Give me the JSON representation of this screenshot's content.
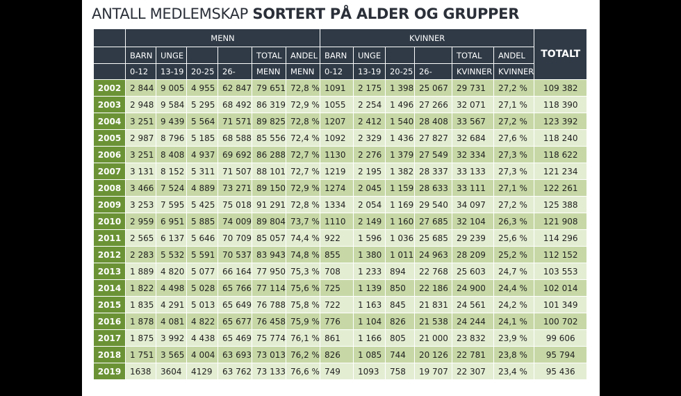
{
  "title": {
    "light": "ANTALL MEDLEMSKAP",
    "bold": "SORTERT PÅ ALDER OG GRUPPER"
  },
  "header": {
    "menn": "MENN",
    "kvinner": "KVINNER",
    "totalt": "TOTALT",
    "men_cols": [
      {
        "top": "BARN",
        "bottom": "0-12"
      },
      {
        "top": "UNGE",
        "bottom": "13-19"
      },
      {
        "top": "",
        "bottom": "20-25"
      },
      {
        "top": "",
        "bottom": "26-"
      },
      {
        "top": "TOTAL",
        "bottom": "MENN"
      },
      {
        "top": "ANDEL",
        "bottom": "MENN"
      }
    ],
    "women_cols": [
      {
        "top": "BARN",
        "bottom": "0-12"
      },
      {
        "top": "UNGE",
        "bottom": "13-19"
      },
      {
        "top": "",
        "bottom": "20-25"
      },
      {
        "top": "",
        "bottom": "26-"
      },
      {
        "top": "TOTAL",
        "bottom": "KVINNER"
      },
      {
        "top": "ANDEL",
        "bottom": "KVINNER"
      }
    ]
  },
  "rows": [
    [
      "2002",
      "2 844",
      "9 005",
      "4 955",
      "62 847",
      "79 651",
      "72,8 %",
      "1091",
      "2 175",
      "1 398",
      "25 067",
      "29 731",
      "27,2 %",
      "109 382"
    ],
    [
      "2003",
      "2 948",
      "9 584",
      "5 295",
      "68 492",
      "86 319",
      "72,9 %",
      "1055",
      "2 254",
      "1 496",
      "27 266",
      "32 071",
      "27,1 %",
      "118 390"
    ],
    [
      "2004",
      "3 251",
      "9 439",
      "5 564",
      "71 571",
      "89 825",
      "72,8 %",
      "1207",
      "2 412",
      "1 540",
      "28 408",
      "33 567",
      "27,2 %",
      "123 392"
    ],
    [
      "2005",
      "2 987",
      "8 796",
      "5 185",
      "68 588",
      "85 556",
      "72,4 %",
      "1092",
      "2 329",
      "1 436",
      "27 827",
      "32 684",
      "27,6 %",
      "118 240"
    ],
    [
      "2006",
      "3 251",
      "8 408",
      "4 937",
      "69 692",
      "86 288",
      "72,7 %",
      "1130",
      "2 276",
      "1 379",
      "27 549",
      "32 334",
      "27,3 %",
      "118 622"
    ],
    [
      "2007",
      "3 131",
      "8 152",
      "5 311",
      "71 507",
      "88 101",
      "72,7 %",
      "1219",
      "2 195",
      "1 382",
      "28 337",
      "33 133",
      "27,3 %",
      "121 234"
    ],
    [
      "2008",
      "3 466",
      "7 524",
      "4 889",
      "73 271",
      "89 150",
      "72,9 %",
      "1274",
      "2 045",
      "1 159",
      "28 633",
      "33 111",
      "27,1 %",
      "122 261"
    ],
    [
      "2009",
      "3 253",
      "7 595",
      "5 425",
      "75 018",
      "91 291",
      "72,8 %",
      "1334",
      "2 054",
      "1 169",
      "29 540",
      "34 097",
      "27,2 %",
      "125 388"
    ],
    [
      "2010",
      "2 959",
      "6 951",
      "5 885",
      "74 009",
      "89 804",
      "73,7 %",
      "1110",
      "2 149",
      "1 160",
      "27 685",
      "32 104",
      "26,3 %",
      "121 908"
    ],
    [
      "2011",
      "2 565",
      "6 137",
      "5 646",
      "70 709",
      "85 057",
      "74,4 %",
      "922",
      "1 596",
      "1 036",
      "25 685",
      "29 239",
      "25,6 %",
      "114 296"
    ],
    [
      "2012",
      "2 283",
      "5 532",
      "5 591",
      "70 537",
      "83 943",
      "74,8 %",
      "855",
      "1 380",
      "1 011",
      "24 963",
      "28 209",
      "25,2 %",
      "112 152"
    ],
    [
      "2013",
      "1 889",
      "4 820",
      "5 077",
      "66 164",
      "77 950",
      "75,3 %",
      "708",
      "1 233",
      "894",
      "22 768",
      "25 603",
      "24,7 %",
      "103 553"
    ],
    [
      "2014",
      "1 822",
      "4 498",
      "5 028",
      "65 766",
      "77 114",
      "75,6 %",
      "725",
      "1 139",
      "850",
      "22 186",
      "24 900",
      "24,4 %",
      "102 014"
    ],
    [
      "2015",
      "1 835",
      "4 291",
      "5 013",
      "65 649",
      "76 788",
      "75,8 %",
      "722",
      "1 163",
      "845",
      "21 831",
      "24 561",
      "24,2 %",
      "101 349"
    ],
    [
      "2016",
      "1 878",
      "4 081",
      "4 822",
      "65 677",
      "76 458",
      "75,9 %",
      "776",
      "1 104",
      "826",
      "21 538",
      "24 244",
      "24,1 %",
      "100 702"
    ],
    [
      "2017",
      "1 875",
      "3 992",
      "4 438",
      "65 469",
      "75 774",
      "76,1 %",
      "861",
      "1 166",
      "805",
      "21 000",
      "23 832",
      "23,9 %",
      "99 606"
    ],
    [
      "2018",
      "1 751",
      "3 565",
      "4 004",
      "63 693",
      "73 013",
      "76,2 %",
      "826",
      "1 085",
      "744",
      "20 126",
      "22 781",
      "23,8 %",
      "95 794"
    ],
    [
      "2019",
      "1638",
      "3604",
      "4129",
      "63 762",
      "73 133",
      "76,6 %",
      "749",
      "1093",
      "758",
      "19 707",
      "22 307",
      "23,4 %",
      "95 436"
    ]
  ]
}
